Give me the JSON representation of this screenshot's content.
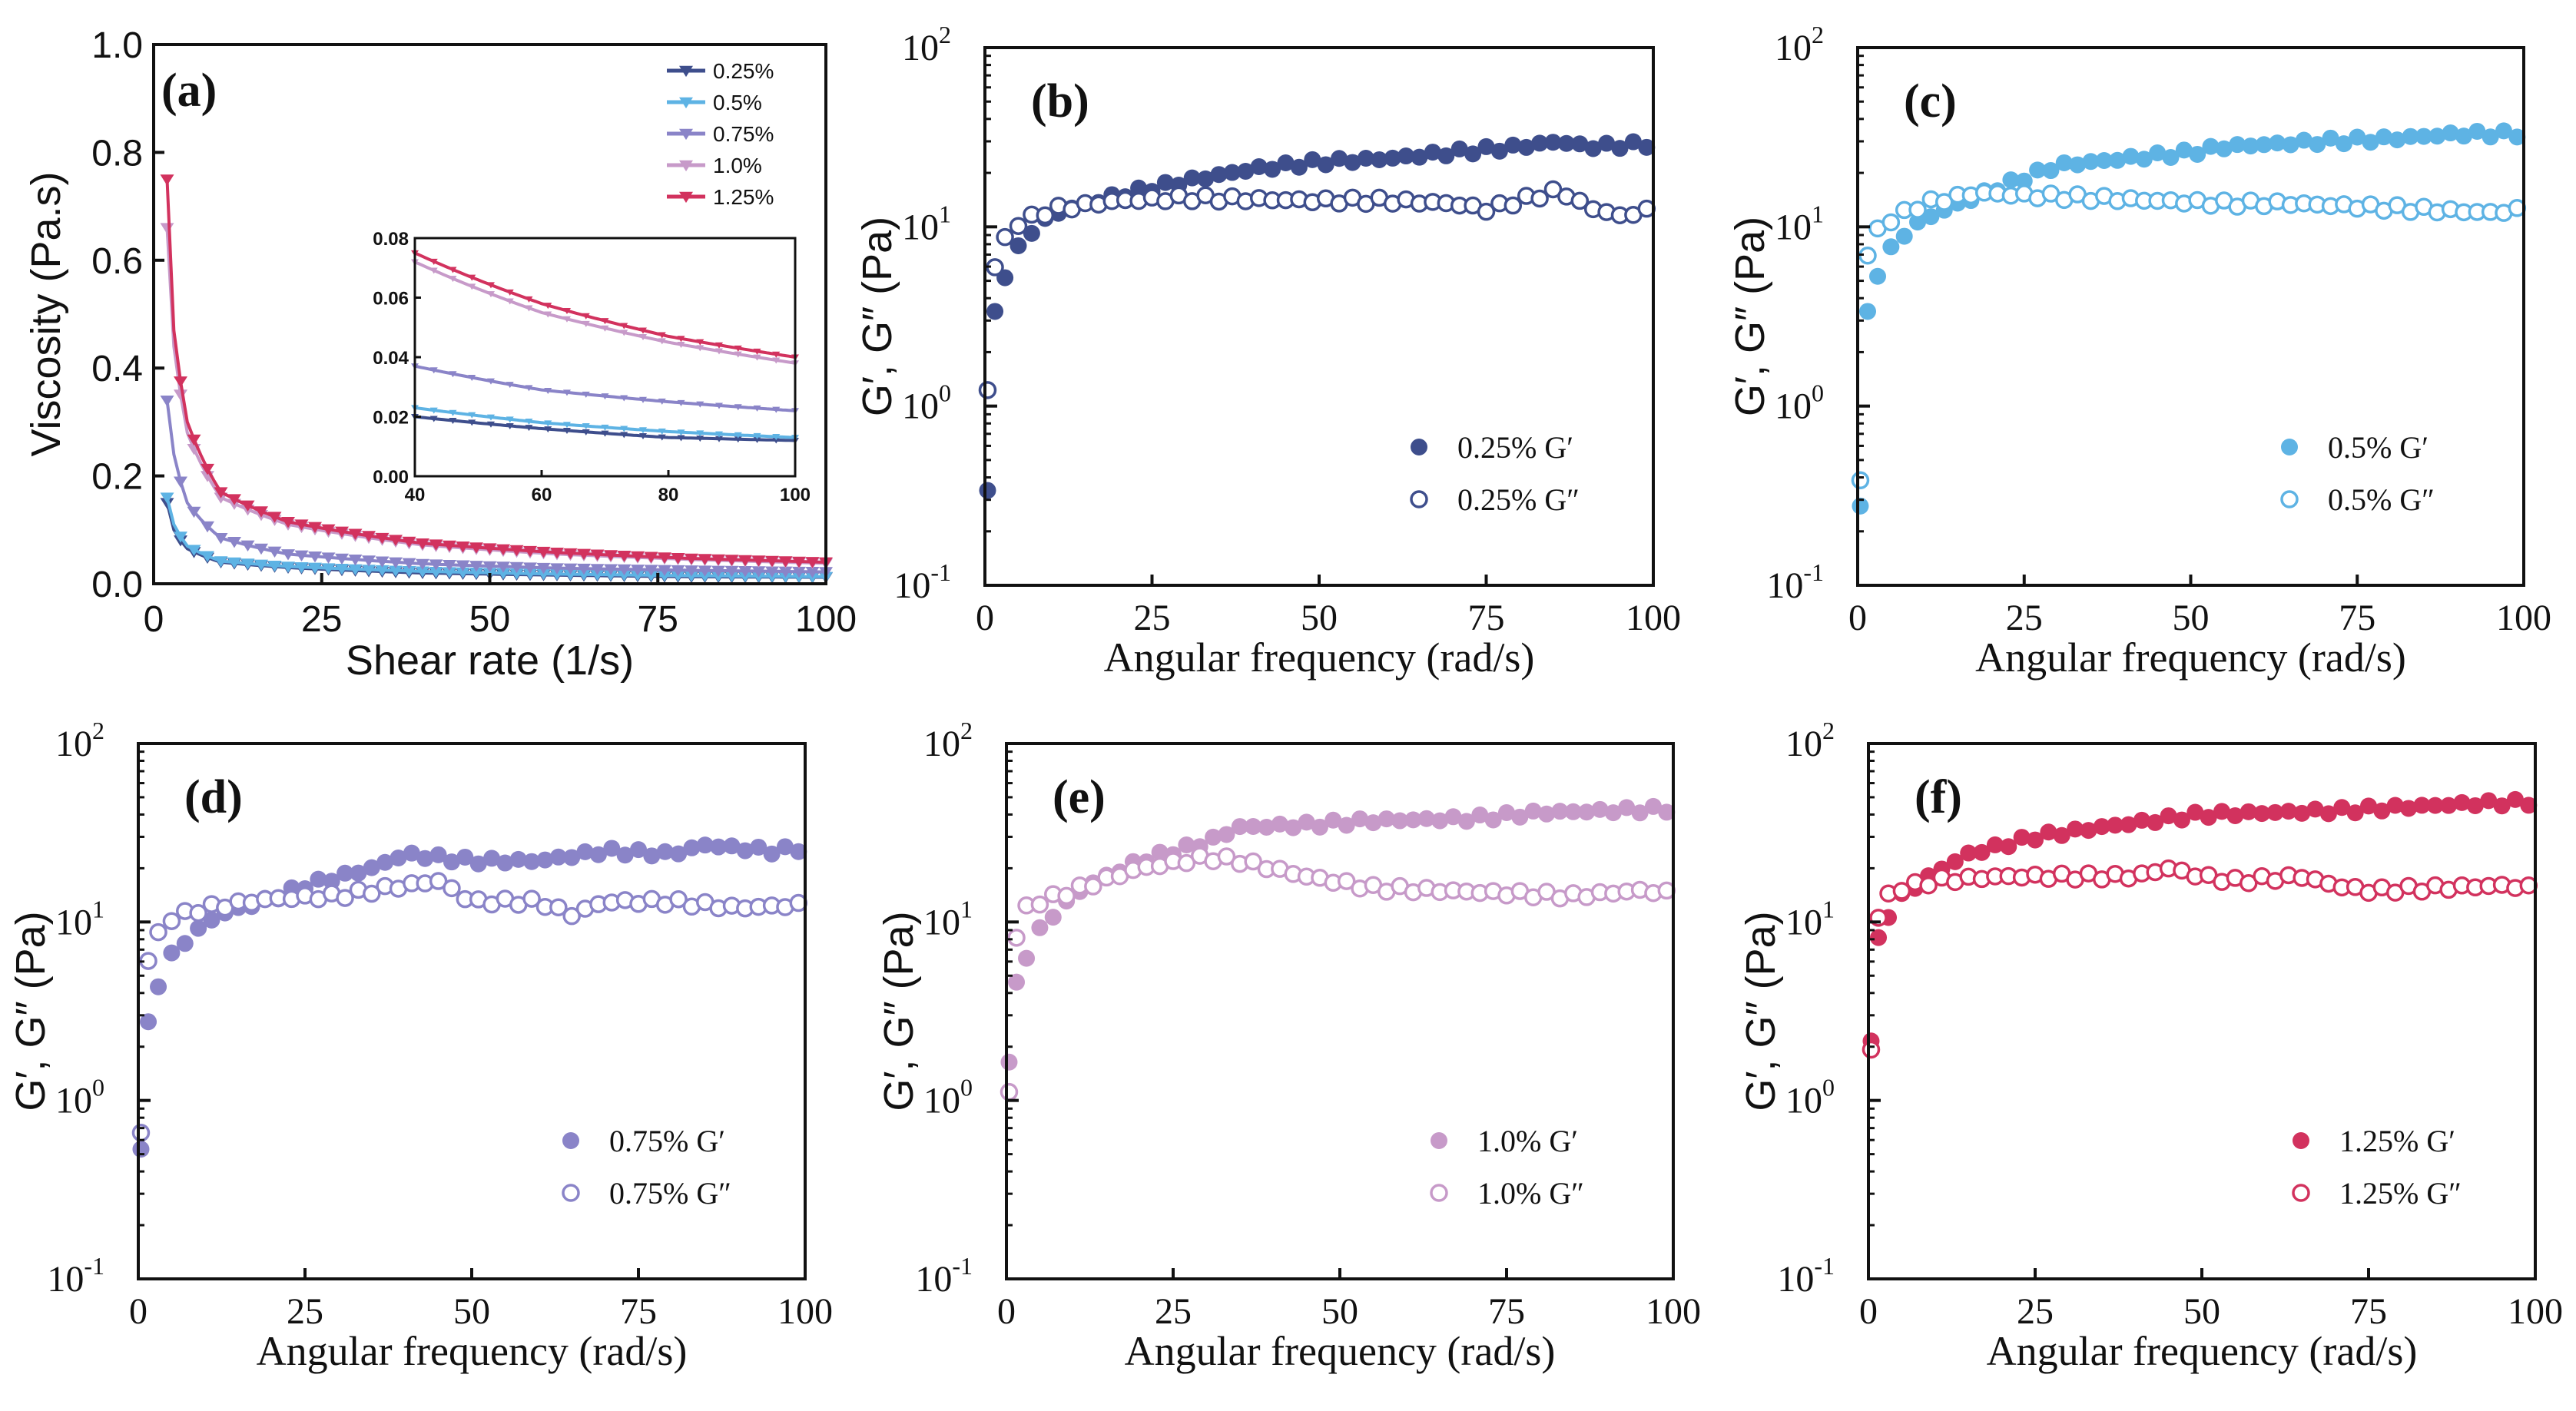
{
  "colors": {
    "c025": "#3e4e8c",
    "c05": "#5eb3e4",
    "c075": "#8a84c8",
    "c10": "#c79ac9",
    "c125": "#d2325e"
  },
  "chart_data": [
    {
      "type": "line",
      "panel": "(a)",
      "xlabel": "Shear rate (1/s)",
      "ylabel": "Viscosity (Pa.s)",
      "xlim": [
        0,
        100
      ],
      "ylim": [
        0,
        1.0
      ],
      "xticks": [
        "0",
        "25",
        "50",
        "75",
        "100"
      ],
      "yticks": [
        "0.0",
        "0.2",
        "0.4",
        "0.6",
        "0.8",
        "1.0"
      ],
      "legend": "top-right",
      "series": [
        {
          "name": "0.25%",
          "color": "#3e4e8c",
          "marker": "down-triangle",
          "x": [
            2,
            3,
            5,
            10,
            20,
            40,
            60,
            80,
            100
          ],
          "values": [
            0.15,
            0.1,
            0.065,
            0.04,
            0.03,
            0.02,
            0.016,
            0.013,
            0.012
          ]
        },
        {
          "name": "0.5%",
          "color": "#5eb3e4",
          "marker": "down-triangle",
          "x": [
            2,
            3,
            5,
            10,
            20,
            40,
            60,
            80,
            100
          ],
          "values": [
            0.16,
            0.11,
            0.07,
            0.042,
            0.032,
            0.023,
            0.018,
            0.015,
            0.013
          ]
        },
        {
          "name": "0.75%",
          "color": "#8a84c8",
          "marker": "down-triangle",
          "x": [
            2,
            3,
            5,
            10,
            20,
            40,
            60,
            80,
            100
          ],
          "values": [
            0.34,
            0.24,
            0.15,
            0.085,
            0.055,
            0.037,
            0.029,
            0.025,
            0.022
          ]
        },
        {
          "name": "1.0%",
          "color": "#c79ac9",
          "marker": "down-triangle",
          "x": [
            2,
            3,
            5,
            10,
            20,
            40,
            60,
            80,
            100
          ],
          "values": [
            0.66,
            0.44,
            0.28,
            0.16,
            0.11,
            0.072,
            0.055,
            0.045,
            0.038
          ]
        },
        {
          "name": "1.25%",
          "color": "#d2325e",
          "marker": "down-triangle",
          "x": [
            2,
            3,
            5,
            10,
            20,
            40,
            60,
            80,
            100
          ],
          "values": [
            0.75,
            0.47,
            0.3,
            0.17,
            0.115,
            0.075,
            0.058,
            0.047,
            0.04
          ]
        }
      ],
      "inset": {
        "xlim": [
          40,
          100
        ],
        "ylim": [
          0,
          0.08
        ],
        "xticks": [
          "40",
          "60",
          "80",
          "100"
        ],
        "yticks": [
          "0.00",
          "0.02",
          "0.04",
          "0.06",
          "0.08"
        ]
      }
    },
    {
      "type": "scatter",
      "panel": "(b)",
      "color": "#3e4e8c",
      "xlabel": "Angular frequency (rad/s)",
      "ylabel": "G′, G″ (Pa)",
      "xlim": [
        0,
        100
      ],
      "ylim_log10": [
        -1,
        2
      ],
      "yscale": "log",
      "xticks": [
        "0",
        "25",
        "50",
        "75",
        "100"
      ],
      "ytick_base": "10",
      "ytick_exponents": [
        "-1",
        "0",
        "1",
        "2"
      ],
      "legend": "bottom-right",
      "series": [
        {
          "name": "0.25% G′",
          "fill": "filled",
          "anchors": [
            [
              0.4,
              0.33
            ],
            [
              1.5,
              3.3
            ],
            [
              3,
              5.4
            ],
            [
              5,
              7.6
            ],
            [
              8,
              10.5
            ],
            [
              12,
              12.5
            ],
            [
              20,
              15
            ],
            [
              30,
              18
            ],
            [
              40,
              21
            ],
            [
              50,
              23
            ],
            [
              60,
              24
            ],
            [
              70,
              26
            ],
            [
              80,
              28
            ],
            [
              86,
              30
            ],
            [
              90,
              28
            ],
            [
              100,
              29
            ]
          ]
        },
        {
          "name": "0.25% G″",
          "fill": "hollow",
          "anchors": [
            [
              0.2,
              0.9
            ],
            [
              1.5,
              6.2
            ],
            [
              3,
              8.5
            ],
            [
              5,
              10.5
            ],
            [
              10,
              12.5
            ],
            [
              20,
              14
            ],
            [
              30,
              14.5
            ],
            [
              50,
              14
            ],
            [
              60,
              14
            ],
            [
              70,
              13.5
            ],
            [
              75,
              12.5
            ],
            [
              80,
              14
            ],
            [
              86,
              16
            ],
            [
              90,
              13
            ],
            [
              95,
              11.5
            ],
            [
              100,
              12.5
            ]
          ]
        }
      ]
    },
    {
      "type": "scatter",
      "panel": "(c)",
      "color": "#5eb3e4",
      "xlabel": "Angular frequency (rad/s)",
      "ylabel": "G′, G″ (Pa)",
      "xlim": [
        0,
        100
      ],
      "ylim_log10": [
        -1,
        2
      ],
      "yscale": "log",
      "xticks": [
        "0",
        "25",
        "50",
        "75",
        "100"
      ],
      "ytick_base": "10",
      "ytick_exponents": [
        "-1",
        "0",
        "1",
        "2"
      ],
      "legend": "bottom-right",
      "series": [
        {
          "name": "0.5% G′",
          "fill": "filled",
          "anchors": [
            [
              0.4,
              0.27
            ],
            [
              1.5,
              3.3
            ],
            [
              3,
              5.5
            ],
            [
              5,
              7.5
            ],
            [
              8,
              10
            ],
            [
              12,
              12
            ],
            [
              20,
              16
            ],
            [
              30,
              22
            ],
            [
              40,
              24
            ],
            [
              50,
              26
            ],
            [
              55,
              28
            ],
            [
              70,
              30
            ],
            [
              80,
              31
            ],
            [
              90,
              33
            ],
            [
              100,
              33
            ]
          ]
        },
        {
          "name": "0.5% G″",
          "fill": "hollow",
          "anchors": [
            [
              0.4,
              0.38
            ],
            [
              1.5,
              7.2
            ],
            [
              3,
              9.5
            ],
            [
              5,
              11
            ],
            [
              10,
              13.5
            ],
            [
              18,
              15.5
            ],
            [
              25,
              15
            ],
            [
              35,
              14.5
            ],
            [
              45,
              14
            ],
            [
              55,
              13.5
            ],
            [
              65,
              13.5
            ],
            [
              75,
              13
            ],
            [
              85,
              12.5
            ],
            [
              95,
              12
            ],
            [
              100,
              12.5
            ]
          ]
        }
      ]
    },
    {
      "type": "scatter",
      "panel": "(d)",
      "color": "#8a84c8",
      "xlabel": "Angular frequency (rad/s)",
      "ylabel": "G′, G″ (Pa)",
      "xlim": [
        0,
        100
      ],
      "ylim_log10": [
        -1,
        2
      ],
      "yscale": "log",
      "xticks": [
        "0",
        "25",
        "50",
        "75",
        "100"
      ],
      "ytick_base": "10",
      "ytick_exponents": [
        "-1",
        "0",
        "1",
        "2"
      ],
      "legend": "bottom-right",
      "series": [
        {
          "name": "0.75% G′",
          "fill": "filled",
          "anchors": [
            [
              0.4,
              0.52
            ],
            [
              1.5,
              2.7
            ],
            [
              3,
              4.5
            ],
            [
              5,
              6.5
            ],
            [
              8,
              8.5
            ],
            [
              12,
              11
            ],
            [
              20,
              13.5
            ],
            [
              25,
              16
            ],
            [
              35,
              20
            ],
            [
              40,
              24
            ],
            [
              50,
              22
            ],
            [
              60,
              22
            ],
            [
              70,
              25
            ],
            [
              80,
              24
            ],
            [
              85,
              27
            ],
            [
              95,
              25
            ],
            [
              100,
              26
            ]
          ]
        },
        {
          "name": "0.75% G″",
          "fill": "hollow",
          "anchors": [
            [
              0.4,
              0.65
            ],
            [
              1.5,
              6.3
            ],
            [
              3,
              8.5
            ],
            [
              5,
              10.5
            ],
            [
              10,
              12
            ],
            [
              20,
              13.5
            ],
            [
              30,
              14
            ],
            [
              40,
              16
            ],
            [
              45,
              17
            ],
            [
              50,
              13
            ],
            [
              60,
              13
            ],
            [
              65,
              11
            ],
            [
              70,
              13
            ],
            [
              80,
              13
            ],
            [
              90,
              12
            ],
            [
              100,
              12.5
            ]
          ]
        }
      ]
    },
    {
      "type": "scatter",
      "panel": "(e)",
      "color": "#c79ac9",
      "xlabel": "Angular frequency (rad/s)",
      "ylabel": "G′, G″ (Pa)",
      "xlim": [
        0,
        100
      ],
      "ylim_log10": [
        -1,
        2
      ],
      "yscale": "log",
      "xticks": [
        "0",
        "25",
        "50",
        "75",
        "100"
      ],
      "ytick_base": "10",
      "ytick_exponents": [
        "-1",
        "0",
        "1",
        "2"
      ],
      "legend": "bottom-right",
      "series": [
        {
          "name": "1.0% G′",
          "fill": "filled",
          "anchors": [
            [
              0.4,
              1.6
            ],
            [
              1.5,
              4.5
            ],
            [
              3,
              6.5
            ],
            [
              5,
              9
            ],
            [
              8,
              12
            ],
            [
              12,
              16
            ],
            [
              20,
              22
            ],
            [
              30,
              28
            ],
            [
              35,
              34
            ],
            [
              45,
              35
            ],
            [
              55,
              37
            ],
            [
              70,
              38
            ],
            [
              80,
              41
            ],
            [
              90,
              42
            ],
            [
              100,
              43
            ]
          ]
        },
        {
          "name": "1.0% G″",
          "fill": "hollow",
          "anchors": [
            [
              0.4,
              1.1
            ],
            [
              1.5,
              8.5
            ],
            [
              3,
              12
            ],
            [
              5,
              13
            ],
            [
              10,
              15
            ],
            [
              20,
              20
            ],
            [
              30,
              23
            ],
            [
              35,
              22
            ],
            [
              45,
              18
            ],
            [
              55,
              15.5
            ],
            [
              65,
              15
            ],
            [
              75,
              14.5
            ],
            [
              85,
              14
            ],
            [
              95,
              15
            ],
            [
              100,
              14.5
            ]
          ]
        }
      ]
    },
    {
      "type": "scatter",
      "panel": "(f)",
      "color": "#d2325e",
      "xlabel": "Angular frequency (rad/s)",
      "ylabel": "G′, G″ (Pa)",
      "xlim": [
        0,
        100
      ],
      "ylim_log10": [
        -1,
        2
      ],
      "yscale": "log",
      "xticks": [
        "0",
        "25",
        "50",
        "75",
        "100"
      ],
      "ytick_base": "10",
      "ytick_exponents": [
        "-1",
        "0",
        "1",
        "2"
      ],
      "legend": "bottom-right",
      "series": [
        {
          "name": "1.25% G′",
          "fill": "filled",
          "anchors": [
            [
              0.4,
              2.1
            ],
            [
              1.5,
              8
            ],
            [
              3,
              11
            ],
            [
              5,
              14
            ],
            [
              10,
              19
            ],
            [
              15,
              24
            ],
            [
              25,
              30
            ],
            [
              35,
              34
            ],
            [
              45,
              38
            ],
            [
              50,
              40
            ],
            [
              60,
              41
            ],
            [
              70,
              42
            ],
            [
              80,
              44
            ],
            [
              90,
              46
            ],
            [
              100,
              47
            ]
          ]
        },
        {
          "name": "1.25% G″",
          "fill": "hollow",
          "anchors": [
            [
              0.4,
              1.9
            ],
            [
              1.5,
              11
            ],
            [
              3,
              14
            ],
            [
              5,
              15.5
            ],
            [
              10,
              17
            ],
            [
              20,
              18
            ],
            [
              30,
              18
            ],
            [
              40,
              18
            ],
            [
              45,
              20
            ],
            [
              50,
              18
            ],
            [
              55,
              17
            ],
            [
              65,
              18
            ],
            [
              70,
              16
            ],
            [
              75,
              15
            ],
            [
              85,
              15.5
            ],
            [
              95,
              16
            ],
            [
              100,
              15.5
            ]
          ]
        }
      ]
    }
  ]
}
